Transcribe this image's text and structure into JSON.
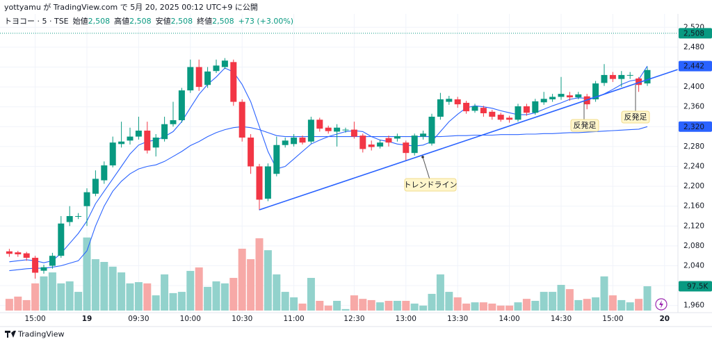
{
  "header": {
    "user_line": "yottyamu が TradingView.com で 5月 20, 2025 00:12 UTC+9 に公開",
    "symbol": "トヨコー · 5 · TSE",
    "ohlc": [
      {
        "label": "始値",
        "value": "2,508"
      },
      {
        "label": "高値",
        "value": "2,508"
      },
      {
        "label": "安値",
        "value": "2,508"
      },
      {
        "label": "終値",
        "value": "2,508"
      }
    ],
    "change": "+73 (+3.00%)"
  },
  "footer": {
    "brand": "TradingView"
  },
  "chart_data": {
    "type": "candlestick",
    "categories": [
      null,
      null,
      null,
      "15:00",
      null,
      null,
      null,
      null,
      null,
      "19",
      null,
      null,
      null,
      null,
      null,
      "09:30",
      null,
      null,
      null,
      null,
      null,
      "10:00",
      null,
      null,
      null,
      null,
      null,
      "10:30",
      null,
      null,
      null,
      null,
      null,
      "11:00",
      null,
      null,
      null,
      null,
      null,
      null,
      "12:30",
      null,
      null,
      null,
      null,
      null,
      "13:00",
      null,
      null,
      null,
      null,
      null,
      "13:30",
      null,
      null,
      null,
      null,
      null,
      "14:00",
      null,
      null,
      null,
      null,
      null,
      "14:30",
      null,
      null,
      null,
      null,
      null,
      "15:00",
      null,
      null,
      null,
      null,
      null,
      "20"
    ],
    "open": [
      2069,
      2067,
      2065,
      2056,
      2030,
      2040,
      2060,
      2128,
      2140,
      2160,
      2185,
      2212,
      2242,
      2285,
      2292,
      2300,
      2312,
      2278,
      2295,
      2325,
      2333,
      2393,
      2440,
      2404,
      2432,
      2440,
      2450,
      2370,
      2298,
      2240,
      2175,
      2225,
      2283,
      2285,
      2298,
      2290,
      2334,
      2318,
      2310,
      2314,
      2314,
      2302,
      2284,
      2280,
      2297,
      2296,
      2288,
      2267,
      2300,
      2286,
      2340,
      2370,
      2375,
      2368,
      2352,
      2358,
      2350,
      2344,
      2338,
      2334,
      2361,
      2348,
      2369,
      2375,
      2380,
      2383,
      2379,
      2381,
      2375,
      2408,
      2424,
      2416,
      2423,
      2417,
      2407,
      null,
      null
    ],
    "high": [
      2074,
      2070,
      2068,
      2060,
      2042,
      2066,
      2140,
      2160,
      2146,
      2196,
      2232,
      2250,
      2300,
      2330,
      2318,
      2340,
      2330,
      2305,
      2340,
      2370,
      2398,
      2455,
      2455,
      2440,
      2455,
      2458,
      2455,
      2375,
      2305,
      2245,
      2246,
      2300,
      2298,
      2305,
      2302,
      2340,
      2338,
      2322,
      2325,
      2318,
      2330,
      2306,
      2292,
      2294,
      2302,
      2306,
      2292,
      2306,
      2312,
      2346,
      2388,
      2382,
      2380,
      2372,
      2366,
      2362,
      2354,
      2348,
      2342,
      2366,
      2366,
      2376,
      2390,
      2386,
      2420,
      2390,
      2390,
      2386,
      2412,
      2446,
      2430,
      2432,
      2430,
      2420,
      2440,
      null,
      null
    ],
    "low": [
      2058,
      2058,
      2050,
      2014,
      2024,
      2034,
      2056,
      2120,
      2134,
      2120,
      2180,
      2205,
      2238,
      2278,
      2284,
      2294,
      2266,
      2260,
      2290,
      2320,
      2328,
      2388,
      2392,
      2398,
      2428,
      2436,
      2362,
      2290,
      2225,
      2152,
      2170,
      2220,
      2278,
      2280,
      2284,
      2286,
      2310,
      2306,
      2280,
      2308,
      2296,
      2268,
      2272,
      2276,
      2280,
      2290,
      2252,
      2262,
      2294,
      2282,
      2334,
      2364,
      2358,
      2346,
      2348,
      2340,
      2334,
      2330,
      2328,
      2330,
      2342,
      2344,
      2364,
      2370,
      2374,
      2372,
      2375,
      2355,
      2370,
      2402,
      2410,
      2400,
      2416,
      2390,
      2402,
      null,
      null
    ],
    "close": [
      2064,
      2063,
      2056,
      2026,
      2037,
      2060,
      2125,
      2140,
      2140,
      2188,
      2215,
      2242,
      2288,
      2290,
      2300,
      2312,
      2272,
      2298,
      2325,
      2333,
      2393,
      2440,
      2400,
      2431,
      2443,
      2453,
      2370,
      2298,
      2240,
      2173,
      2240,
      2283,
      2292,
      2298,
      2288,
      2334,
      2316,
      2311,
      2318,
      2314,
      2300,
      2275,
      2279,
      2288,
      2288,
      2301,
      2267,
      2302,
      2306,
      2340,
      2375,
      2376,
      2365,
      2351,
      2361,
      2347,
      2340,
      2334,
      2334,
      2361,
      2348,
      2371,
      2376,
      2380,
      2386,
      2379,
      2385,
      2365,
      2407,
      2424,
      2416,
      2424,
      2424,
      2404,
      2434,
      null,
      null
    ],
    "volume": [
      47000,
      56000,
      42000,
      109000,
      137000,
      153000,
      109000,
      117000,
      75000,
      293000,
      206000,
      195000,
      176000,
      153000,
      109000,
      114000,
      109000,
      61000,
      145000,
      70000,
      75000,
      159000,
      173000,
      95000,
      117000,
      109000,
      131000,
      248000,
      206000,
      290000,
      242000,
      145000,
      75000,
      53000,
      28000,
      131000,
      39000,
      20000,
      39000,
      6000,
      61000,
      47000,
      42000,
      33000,
      39000,
      39000,
      39000,
      28000,
      20000,
      67000,
      145000,
      75000,
      53000,
      28000,
      33000,
      33000,
      28000,
      20000,
      20000,
      33000,
      47000,
      39000,
      75000,
      75000,
      103000,
      86000,
      42000,
      47000,
      53000,
      137000,
      61000,
      42000,
      33000,
      47000,
      97500,
      null,
      null
    ],
    "volume_label": {
      "value": 97500,
      "label": "97.5K"
    },
    "series": [
      {
        "name": "MA fast",
        "color": "#2962ff",
        "values": [
          2048,
          2050,
          2052,
          2050,
          2046,
          2050,
          2065,
          2085,
          2105,
          2130,
          2165,
          2190,
          2215,
          2240,
          2265,
          2283,
          2290,
          2293,
          2300,
          2310,
          2330,
          2358,
          2385,
          2405,
          2420,
          2438,
          2430,
          2405,
          2370,
          2320,
          2270,
          2235,
          2240,
          2255,
          2270,
          2285,
          2293,
          2300,
          2305,
          2310,
          2312,
          2310,
          2300,
          2293,
          2290,
          2285,
          2283,
          2281,
          2283,
          2290,
          2310,
          2330,
          2345,
          2358,
          2362,
          2360,
          2357,
          2352,
          2348,
          2344,
          2344,
          2348,
          2355,
          2362,
          2368,
          2375,
          2378,
          2377,
          2378,
          2386,
          2395,
          2405,
          2412,
          2415,
          2442,
          null,
          null
        ],
        "last_label": {
          "value": 2442,
          "label": "2,442"
        }
      },
      {
        "name": "MA slow",
        "color": "#2962ff",
        "values": [
          2030,
          2032,
          2034,
          2035,
          2035,
          2037,
          2040,
          2045,
          2050,
          2070,
          2120,
          2160,
          2190,
          2210,
          2225,
          2235,
          2240,
          2243,
          2250,
          2260,
          2270,
          2282,
          2290,
          2300,
          2308,
          2314,
          2318,
          2320,
          2318,
          2314,
          2308,
          2302,
          2300,
          2300,
          2300,
          2300,
          2300,
          2300,
          2300,
          2300,
          2300,
          2300,
          2300,
          2300,
          2300,
          2300,
          2300,
          2300,
          2300,
          2300,
          2300,
          2301,
          2302,
          2302,
          2303,
          2303,
          2303,
          2304,
          2304,
          2304,
          2305,
          2305,
          2306,
          2306,
          2307,
          2308,
          2308,
          2309,
          2310,
          2311,
          2312,
          2313,
          2314,
          2315,
          2320,
          null,
          null
        ],
        "last_label": {
          "value": 2320,
          "label": "2,320"
        }
      }
    ],
    "last_price": {
      "value": 2508,
      "label": "2,508"
    },
    "ylim": [
      1946,
      2540
    ],
    "yticks": [
      {
        "value": 1960,
        "label": "1,960"
      },
      {
        "value": 2000,
        "label": "2,000"
      },
      {
        "value": 2040,
        "label": "2,040"
      },
      {
        "value": 2080,
        "label": "2,080"
      },
      {
        "value": 2120,
        "label": "2,120"
      },
      {
        "value": 2160,
        "label": "2,160"
      },
      {
        "value": 2200,
        "label": "2,200"
      },
      {
        "value": 2240,
        "label": "2,240"
      },
      {
        "value": 2280,
        "label": "2,280"
      },
      {
        "value": 2320,
        "label": "2,320"
      },
      {
        "value": 2360,
        "label": "2,360"
      },
      {
        "value": 2400,
        "label": "2,400"
      },
      {
        "value": 2440,
        "label": "2,440"
      },
      {
        "value": 2480,
        "label": "2,480"
      },
      {
        "value": 2520,
        "label": "2,520"
      }
    ],
    "y2lim": [
      0,
      300000
    ],
    "up_color": "#089981",
    "down_color": "#f23645",
    "volume_up_color": "#92d2cc",
    "volume_down_color": "#f7a9a7",
    "grid": true,
    "annotations": [
      {
        "text": "トレンドライン"
      },
      {
        "text": "反発足"
      },
      {
        "text": "反発足"
      }
    ]
  }
}
